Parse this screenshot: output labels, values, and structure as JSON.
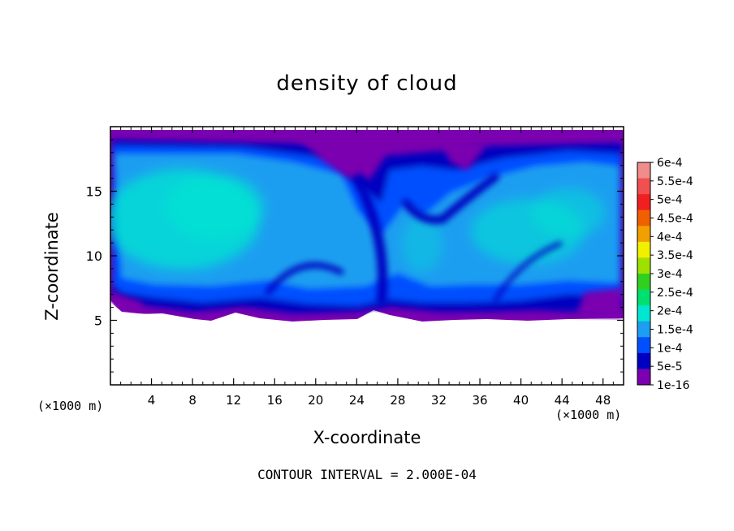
{
  "chart_data": {
    "type": "heatmap",
    "title": "density of cloud",
    "xlabel": "X-coordinate",
    "ylabel": "Z-coordinate",
    "x_unit": "(×1000 m)",
    "y_unit": "(×1000 m)",
    "xlim": [
      0,
      50
    ],
    "ylim": [
      0,
      20
    ],
    "x_ticks": [
      4,
      8,
      12,
      16,
      20,
      24,
      28,
      32,
      36,
      40,
      44,
      48
    ],
    "y_ticks": [
      5,
      10,
      15
    ],
    "footer": "CONTOUR INTERVAL = 2.000E-04",
    "colorbar": {
      "labels": [
        "6e-4",
        "5.5e-4",
        "5e-4",
        "4.5e-4",
        "4e-4",
        "3.5e-4",
        "3e-4",
        "2.5e-4",
        "2e-4",
        "1.5e-4",
        "1e-4",
        "5e-5",
        "1e-16"
      ],
      "colors": [
        "#f08c8c",
        "#f05050",
        "#f02020",
        "#f06000",
        "#f0a000",
        "#f0f000",
        "#a0e000",
        "#30d020",
        "#00e070",
        "#00e6d0",
        "#1e9ef0",
        "#0050ff",
        "#0000c0",
        "#7a00b0"
      ]
    },
    "approx_field": {
      "cloud_base_z": 5,
      "cloud_top_z": 19.8,
      "max_level": "2e-4",
      "note": "values mostly between 5e-5 and 2e-4; max near 2e-4 in two cloud lobes"
    }
  }
}
